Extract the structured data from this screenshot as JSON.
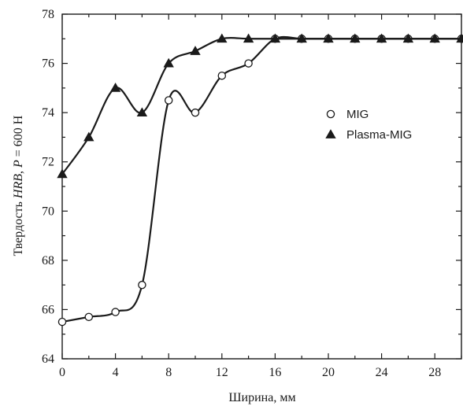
{
  "chart_data": {
    "type": "line",
    "xlabel": "Ширина, мм",
    "ylabel": {
      "prefix": "Твердость ",
      "italic1": "HRB",
      "middle": ", ",
      "italic2": "P",
      "suffix": " = 600 Н"
    },
    "xlim": [
      0,
      30
    ],
    "ylim": [
      64,
      78
    ],
    "xticks": [
      0,
      4,
      8,
      12,
      16,
      20,
      24,
      28
    ],
    "yticks": [
      64,
      66,
      68,
      70,
      72,
      74,
      76,
      78
    ],
    "grid": false,
    "legend_position": "right",
    "series": [
      {
        "name": "MIG",
        "marker": "open-circle",
        "color": "#1a1a1a",
        "x": [
          0,
          2,
          4,
          6,
          8,
          10,
          12,
          14,
          16,
          18,
          20,
          22,
          24,
          26,
          28,
          30
        ],
        "y": [
          65.5,
          65.7,
          65.9,
          67.0,
          74.5,
          74.0,
          75.5,
          76.0,
          77.0,
          77.0,
          77.0,
          77.0,
          77.0,
          77.0,
          77.0,
          77.0
        ]
      },
      {
        "name": "Plasma-MIG",
        "marker": "filled-triangle",
        "color": "#1a1a1a",
        "x": [
          0,
          2,
          4,
          6,
          8,
          10,
          12,
          14,
          16,
          18,
          20,
          22,
          24,
          26,
          28,
          30
        ],
        "y": [
          71.5,
          73.0,
          75.0,
          74.0,
          76.0,
          76.5,
          77.0,
          77.0,
          77.0,
          77.0,
          77.0,
          77.0,
          77.0,
          77.0,
          77.0,
          77.0
        ]
      }
    ]
  }
}
